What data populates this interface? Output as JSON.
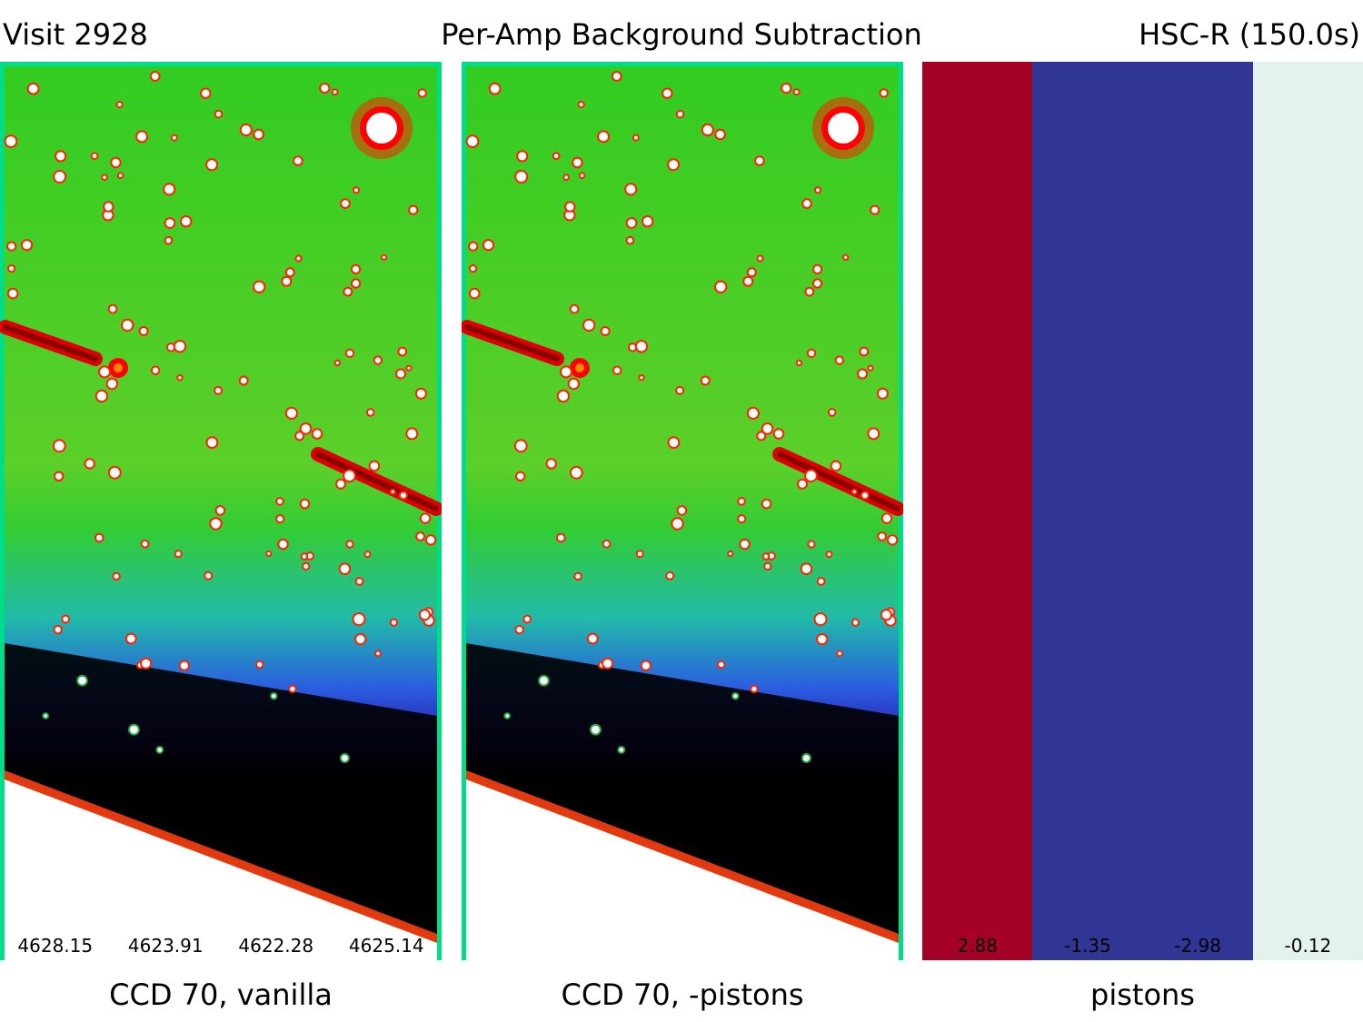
{
  "header": {
    "left": "Visit 2928",
    "center": "Per-Amp Background Subtraction",
    "right": "HSC-R (150.0s)"
  },
  "panels": [
    {
      "label": "CCD 70, vanilla",
      "amp_values": [
        "4628.15",
        "4623.91",
        "4622.28",
        "4625.14"
      ]
    },
    {
      "label": "CCD 70, -pistons",
      "amp_values": []
    },
    {
      "label": "pistons",
      "amp_values": [
        "2.88",
        "-1.35",
        "-2.98",
        "-0.12"
      ]
    }
  ],
  "pistons": {
    "values": [
      2.88,
      -1.35,
      -2.98,
      -0.12
    ],
    "colors": [
      "#a50026",
      "#313695",
      "#313695",
      "#e3f2ec"
    ]
  },
  "image_colors": {
    "border": "#00dd88",
    "background_green": "#22cc33",
    "sky_blue": "#1f3fc9",
    "dark": "#000000",
    "streak": "#dd0000",
    "saturated": "#ffffff"
  }
}
